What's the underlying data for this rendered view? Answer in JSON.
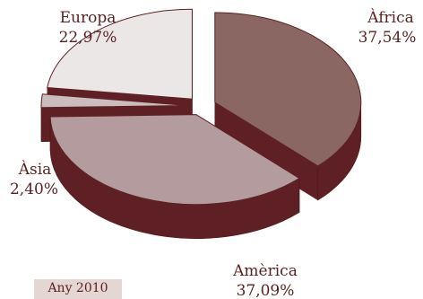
{
  "chart_data": {
    "type": "pie",
    "style": "exploded-3d",
    "slices": [
      {
        "name": "Àfrica",
        "value": 37.54,
        "label": "37,54%",
        "top_color": "#8a6762",
        "side_color": "#5e2024"
      },
      {
        "name": "Amèrica",
        "value": 37.09,
        "label": "37,09%",
        "top_color": "#b49c9e",
        "side_color": "#5e2024"
      },
      {
        "name": "Àsia",
        "value": 2.4,
        "label": "2,40%",
        "top_color": "#cbbcbd",
        "side_color": "#5e2024"
      },
      {
        "name": "Europa",
        "value": 22.97,
        "label": "22,97%",
        "top_color": "#ece7e7",
        "side_color": "#5e2024"
      }
    ],
    "annotation": "Any 2010"
  }
}
